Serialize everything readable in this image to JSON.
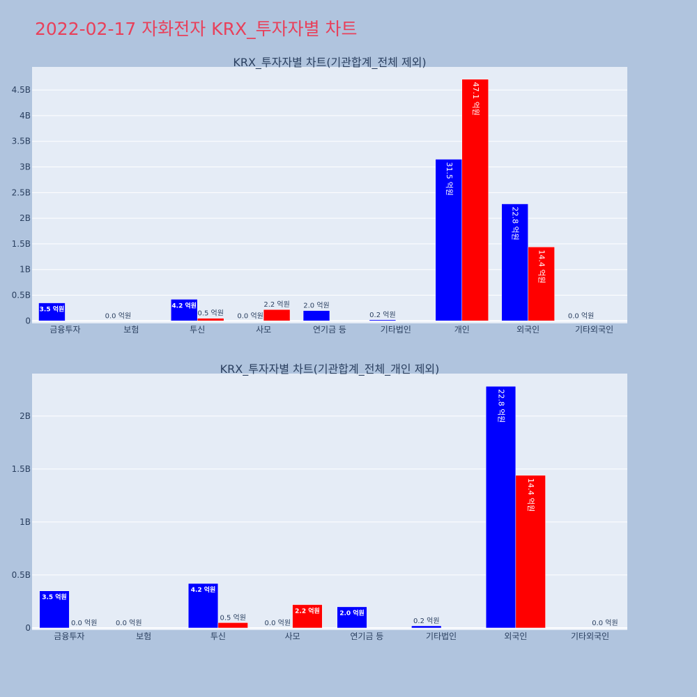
{
  "page_title": "2022-02-17 자화전자 KRX_투자자별 차트",
  "colors": {
    "page_background": "#b0c4de",
    "plot_background": "#e5ecf6",
    "grid": "#ffffff",
    "title": "#e8405a",
    "text": "#2a3f5f",
    "buy": "#0000ff",
    "sell": "#ff0000"
  },
  "chart_data": [
    {
      "type": "bar",
      "title": "KRX_투자자별 차트(기관합계_전체 제외)",
      "categories": [
        "금융투자",
        "보험",
        "투신",
        "사모",
        "연기금 등",
        "기타법인",
        "개인",
        "외국인",
        "기타외국인"
      ],
      "series": [
        {
          "color": "#0000ff",
          "values": [
            350000000,
            0,
            420000000,
            0,
            200000000,
            20000000,
            3150000000,
            2280000000,
            0
          ],
          "labels": [
            "3.5 억원",
            "0.0 억원",
            "4.2 억원",
            "0.0 억원",
            "2.0 억원",
            "0.2 억원",
            "31.5 억원",
            "22.8 억원",
            "0.0 억원"
          ]
        },
        {
          "color": "#ff0000",
          "values": [
            0,
            0,
            50000000,
            220000000,
            0,
            0,
            4710000000,
            1440000000,
            0
          ],
          "labels": [
            "",
            "",
            "0.5 억원",
            "2.2 억원",
            "",
            "",
            "47.1 억원",
            "14.4 억원",
            ""
          ]
        }
      ],
      "ylim": [
        -50000000,
        4950000000
      ],
      "yticks": [
        0,
        500000000,
        1000000000,
        1500000000,
        2000000000,
        2500000000,
        3000000000,
        3500000000,
        4000000000,
        4500000000
      ],
      "ytick_labels": [
        "0",
        "0.5B",
        "1B",
        "1.5B",
        "2B",
        "2.5B",
        "3B",
        "3.5B",
        "4B",
        "4.5B"
      ],
      "grid": true,
      "legend": "none"
    },
    {
      "type": "bar",
      "title": "KRX_투자자별 차트(기관합계_전체_개인 제외)",
      "categories": [
        "금융투자",
        "보험",
        "투신",
        "사모",
        "연기금 등",
        "기타법인",
        "외국인",
        "기타외국인"
      ],
      "series": [
        {
          "color": "#0000ff",
          "values": [
            350000000,
            0,
            420000000,
            0,
            200000000,
            20000000,
            2280000000,
            0
          ],
          "labels": [
            "3.5 억원",
            "0.0 억원",
            "4.2 억원",
            "0.0 억원",
            "2.0 억원",
            "0.2 억원",
            "22.8 억원",
            ""
          ]
        },
        {
          "color": "#ff0000",
          "values": [
            0,
            0,
            50000000,
            220000000,
            0,
            0,
            1440000000,
            0
          ],
          "labels": [
            "0.0 억원",
            "",
            "0.5 억원",
            "2.2 억원",
            "",
            "",
            "14.4 억원",
            "0.0 억원"
          ]
        }
      ],
      "ylim": [
        -20000000,
        2400000000
      ],
      "yticks": [
        0,
        500000000,
        1000000000,
        1500000000,
        2000000000
      ],
      "ytick_labels": [
        "0",
        "0.5B",
        "1B",
        "1.5B",
        "2B"
      ],
      "grid": true,
      "legend": "none"
    }
  ]
}
